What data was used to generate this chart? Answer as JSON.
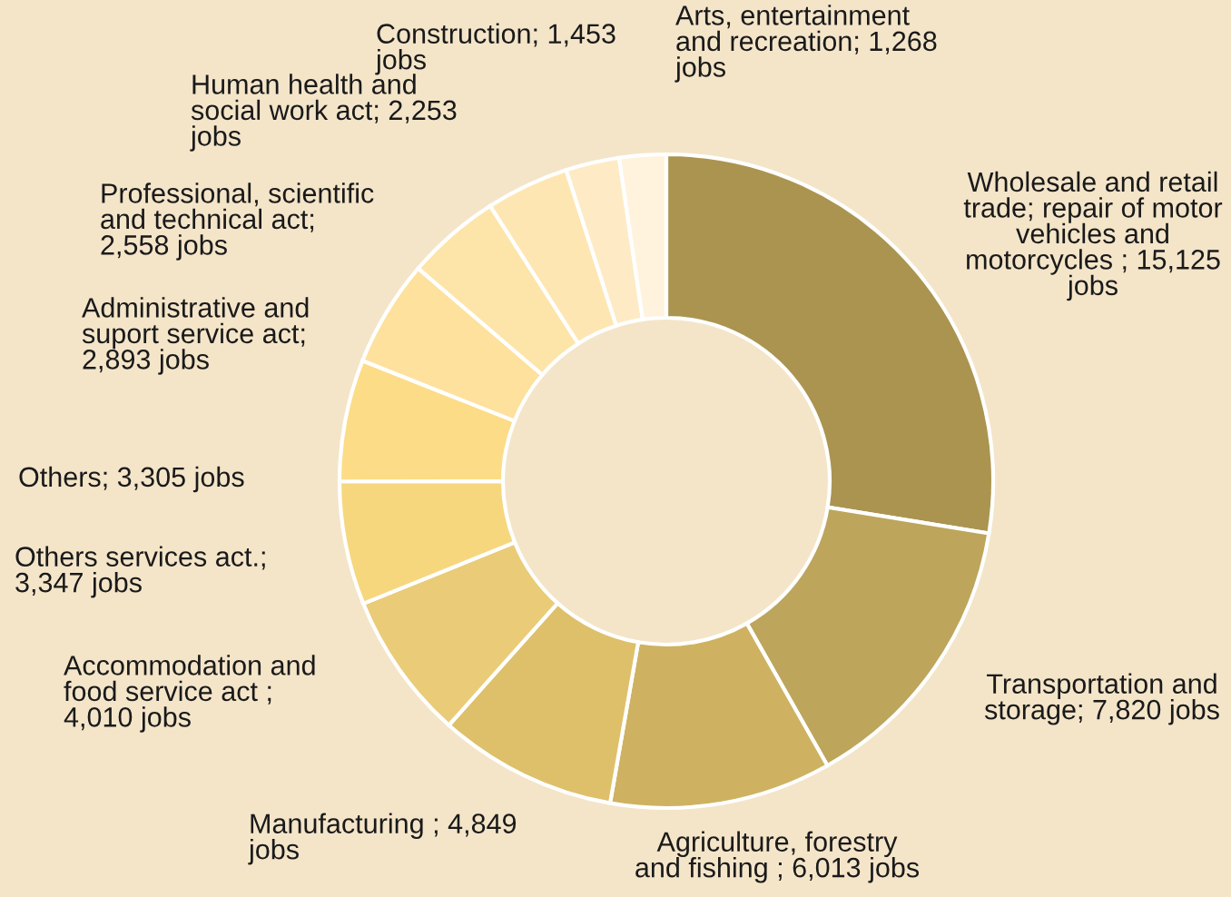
{
  "chart_data": {
    "type": "donut",
    "categories": [
      "Wholesale and retail\ntrade; repair of motor\nvehicles and\nmotorcycles ; 15,125\njobs",
      "Transportation and\nstorage; 7,820 jobs",
      "Agriculture, forestry\nand fishing ; 6,013 jobs",
      "Manufacturing ; 4,849\njobs",
      "Accommodation and\nfood service act ;\n4,010 jobs",
      "Others services act.;\n3,347 jobs",
      "Others; 3,305 jobs",
      "Administrative and\nsuport service act;\n2,893 jobs",
      "Professional, scientific\nand technical act;\n2,558 jobs",
      "Human health and\nsocial work act; 2,253\njobs",
      "Construction; 1,453\njobs",
      "Arts, entertainment\nand recreation; 1,268\njobs"
    ],
    "values": [
      15125,
      7820,
      6013,
      4849,
      4010,
      3347,
      3305,
      2893,
      2558,
      2253,
      1453,
      1268
    ],
    "colors": [
      "#ab9450",
      "#bda55c",
      "#ceb262",
      "#dec06b",
      "#eacb77",
      "#f6d77e",
      "#fcdc87",
      "#fde19c",
      "#fde4a8",
      "#fee6b3",
      "#feebc5",
      "#fff3de"
    ]
  }
}
